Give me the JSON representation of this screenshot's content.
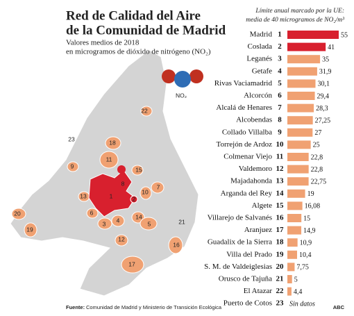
{
  "chart_data": {
    "type": "bar",
    "title": [
      "Red de Calidad del Aire",
      "de la Comunidad de Madrid"
    ],
    "subtitle": [
      "Valores medios de 2018",
      "en microgramos de dióxido de nitrógeno (NO₂)"
    ],
    "annotation": [
      "Límite anual marcado por la UE:",
      "media de 40 microgramos de NO₂/m³"
    ],
    "icon_label": "NO₂",
    "source_label": "Fuente:",
    "source": "Comunidad de Madrid y Ministerio de Transición Ecológica",
    "credit": "ABC",
    "categories": [
      "Madrid",
      "Coslada",
      "Leganés",
      "Getafe",
      "Rivas Vaciamadrid",
      "Alcorcón",
      "Alcalá de Henares",
      "Alcobendas",
      "Collado Villalba",
      "Torrejón de Ardoz",
      "Colmenar Viejo",
      "Valdemoro",
      "Majadahonda",
      "Arganda del Rey",
      "Algete",
      "Villarejo de Salvanés",
      "Aranjuez",
      "Guadalix de la Sierra",
      "Villa del Prado",
      "S. M. de Valdeiglesias",
      "Orusco de Tajuña",
      "El Atazar",
      "Puerto de Cotos"
    ],
    "ranks": [
      1,
      2,
      3,
      4,
      5,
      6,
      7,
      8,
      9,
      10,
      11,
      12,
      13,
      14,
      15,
      16,
      17,
      18,
      19,
      20,
      21,
      22,
      23
    ],
    "values": [
      55,
      41,
      35,
      31.9,
      30.1,
      29.4,
      28.3,
      27.25,
      27,
      25,
      22.8,
      22.8,
      22.75,
      19,
      16.08,
      15,
      14.9,
      10.9,
      10.4,
      7.75,
      5,
      4.4,
      null
    ],
    "value_labels": [
      "55",
      "41",
      "35",
      "31,9",
      "30,1",
      "29,4",
      "28,3",
      "27,25",
      "27",
      "25",
      "22,8",
      "22,8",
      "22,75",
      "19",
      "16,08",
      "15",
      "14,9",
      "10,9",
      "10,4",
      "7,75",
      "5",
      "4,4",
      "Sin datos"
    ],
    "colors": [
      "#d8202e",
      "#d8202e",
      "#f0a172",
      "#f0a172",
      "#f0a172",
      "#f0a172",
      "#f0a172",
      "#f0a172",
      "#f0a172",
      "#f0a172",
      "#f0a172",
      "#f0a172",
      "#f0a172",
      "#f0a172",
      "#f0a172",
      "#f0a172",
      "#f0a172",
      "#f0a172",
      "#f0a172",
      "#f0a172",
      "#f0a172",
      "#f0a172",
      "#f0a172"
    ]
  }
}
